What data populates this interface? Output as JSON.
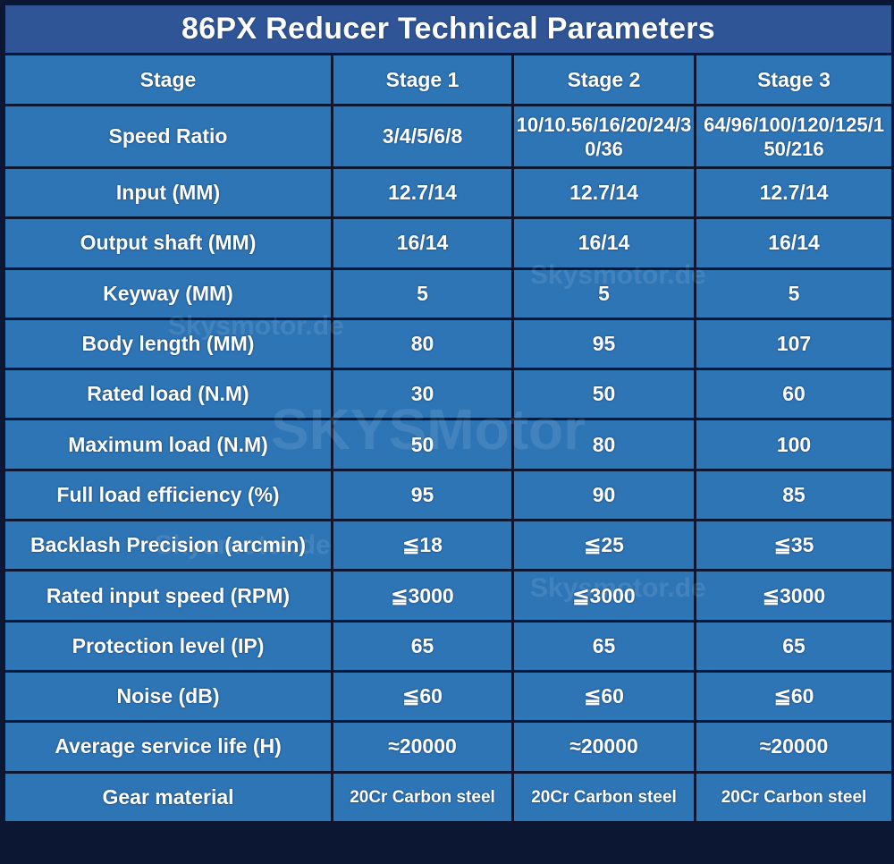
{
  "title": "86PX Reducer Technical Parameters",
  "header": [
    "Stage",
    "Stage 1",
    "Stage 2",
    "Stage 3"
  ],
  "rows": [
    {
      "label": "Speed Ratio",
      "values": [
        "3/4/5/6/8",
        "10/10.56/16/20/24/30/36",
        "64/96/100/120/125/150/216"
      ]
    },
    {
      "label": "Input  (MM)",
      "values": [
        "12.7/14",
        "12.7/14",
        "12.7/14"
      ]
    },
    {
      "label": "Output shaft (MM)",
      "values": [
        "16/14",
        "16/14",
        "16/14"
      ]
    },
    {
      "label": "Keyway (MM)",
      "values": [
        "5",
        "5",
        "5"
      ]
    },
    {
      "label": "Body length (MM)",
      "values": [
        "80",
        "95",
        "107"
      ]
    },
    {
      "label": "Rated load (N.M)",
      "values": [
        "30",
        "50",
        "60"
      ]
    },
    {
      "label": "Maximum load (N.M)",
      "values": [
        "50",
        "80",
        "100"
      ]
    },
    {
      "label": "Full load efficiency (%)",
      "values": [
        "95",
        "90",
        "85"
      ]
    },
    {
      "label": "Backlash Precision (arcmin)",
      "values": [
        "≦18",
        "≦25",
        "≦35"
      ]
    },
    {
      "label": "Rated input speed (RPM)",
      "values": [
        "≦3000",
        "≦3000",
        "≦3000"
      ]
    },
    {
      "label": "Protection level (IP)",
      "values": [
        "65",
        "65",
        "65"
      ]
    },
    {
      "label": "Noise (dB)",
      "values": [
        "≦60",
        "≦60",
        "≦60"
      ]
    },
    {
      "label": "Average service life (H)",
      "values": [
        "≈20000",
        "≈20000",
        "≈20000"
      ]
    },
    {
      "label": "Gear material",
      "values": [
        "20Cr Carbon steel",
        "20Cr Carbon steel",
        "20Cr Carbon steel"
      ]
    }
  ],
  "watermarks": [
    "Skysmotor.de",
    "SKYSMotor"
  ],
  "colors": {
    "title_bg": "#2f5597",
    "cell_bg": "#2e75b6",
    "border": "#0b1733",
    "text": "#ffffff"
  }
}
